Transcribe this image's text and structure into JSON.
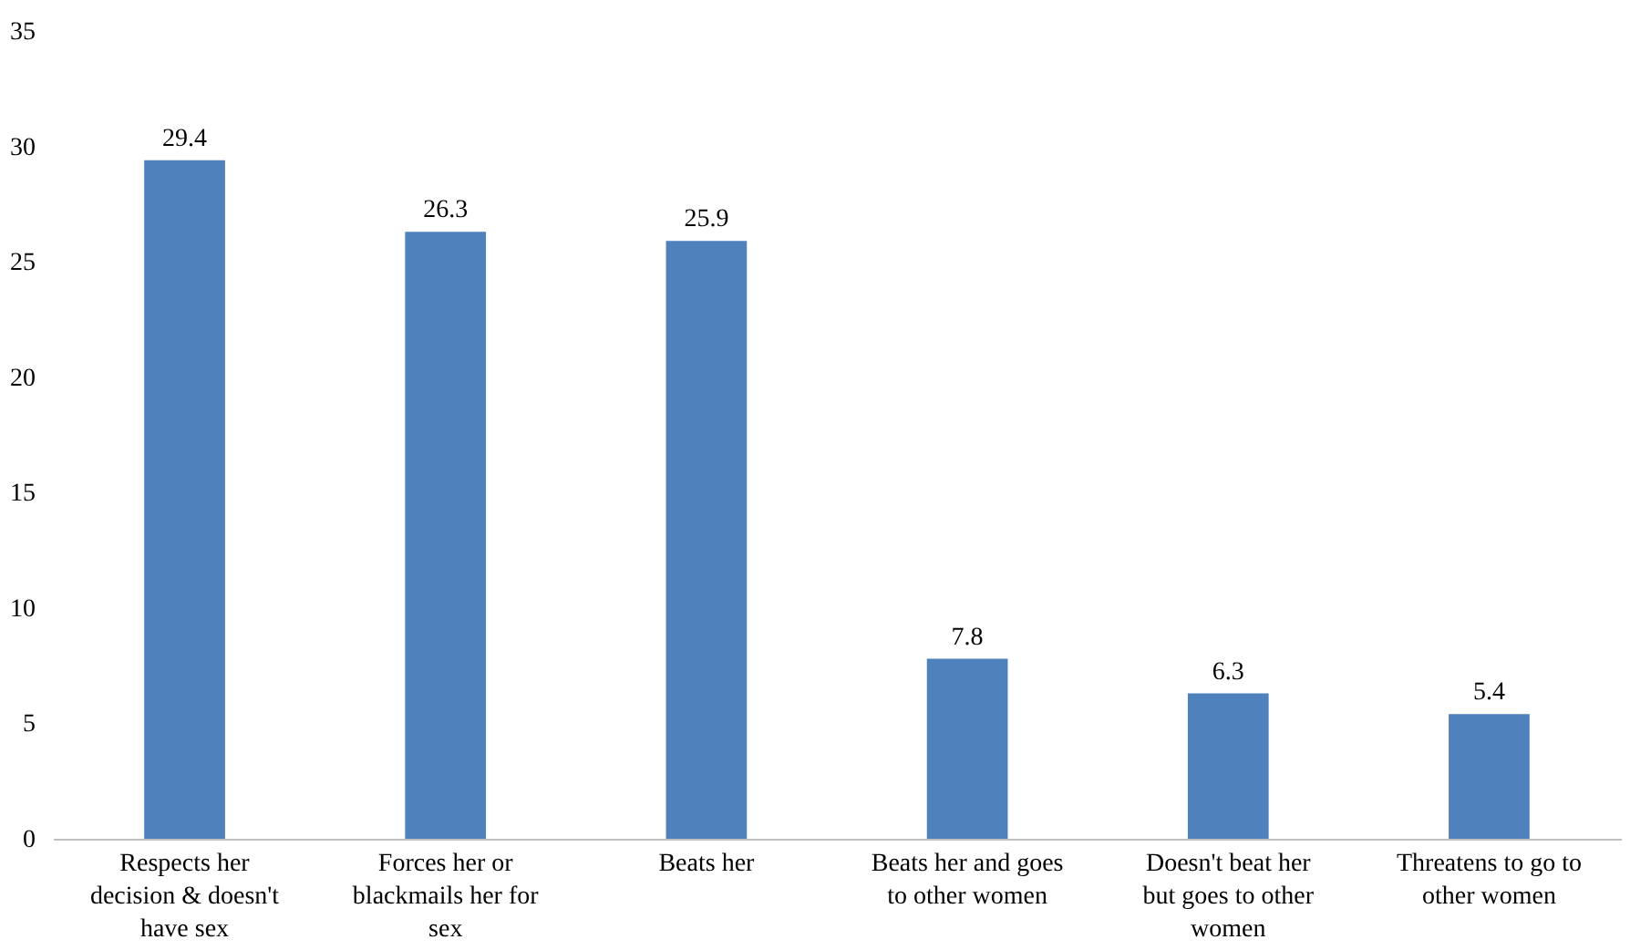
{
  "chart_data": {
    "type": "bar",
    "categories": [
      "Respects her decision & doesn't have sex",
      "Forces her or blackmails her for sex",
      "Beats her",
      "Beats her and goes to other women",
      "Doesn't beat her but goes to other women",
      "Threatens to go to other women"
    ],
    "values": [
      29.4,
      26.3,
      25.9,
      7.8,
      6.3,
      5.4
    ],
    "color": "#4f81bd",
    "ylim": [
      0,
      35
    ],
    "yticks": [
      0,
      5,
      10,
      15,
      20,
      25,
      30,
      35
    ],
    "grid": false,
    "data_labels": true
  }
}
